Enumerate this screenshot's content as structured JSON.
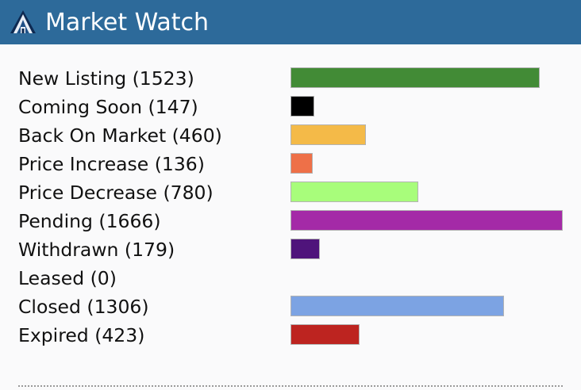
{
  "header": {
    "title": "Market Watch",
    "logo_icon": "house-logo-icon"
  },
  "chart_data": {
    "type": "bar",
    "orientation": "horizontal",
    "categories": [
      "New Listing",
      "Coming Soon",
      "Back On Market",
      "Price Increase",
      "Price Decrease",
      "Pending",
      "Withdrawn",
      "Leased",
      "Closed",
      "Expired"
    ],
    "values": [
      1523,
      147,
      460,
      136,
      780,
      1666,
      179,
      0,
      1306,
      423
    ],
    "labels": [
      "New Listing (1523)",
      "Coming Soon (147)",
      "Back On Market (460)",
      "Price Increase (136)",
      "Price Decrease (780)",
      "Pending (1666)",
      "Withdrawn (179)",
      "Leased (0)",
      "Closed (1306)",
      "Expired (423)"
    ],
    "colors": [
      "#428b36",
      "#000000",
      "#f4ba48",
      "#ee7048",
      "#a8fd7b",
      "#a42aa7",
      "#4f147b",
      "#cccccc",
      "#7ca3e3",
      "#bd2420"
    ],
    "xlim": [
      0,
      1666
    ],
    "grid": false,
    "legend": "none"
  }
}
